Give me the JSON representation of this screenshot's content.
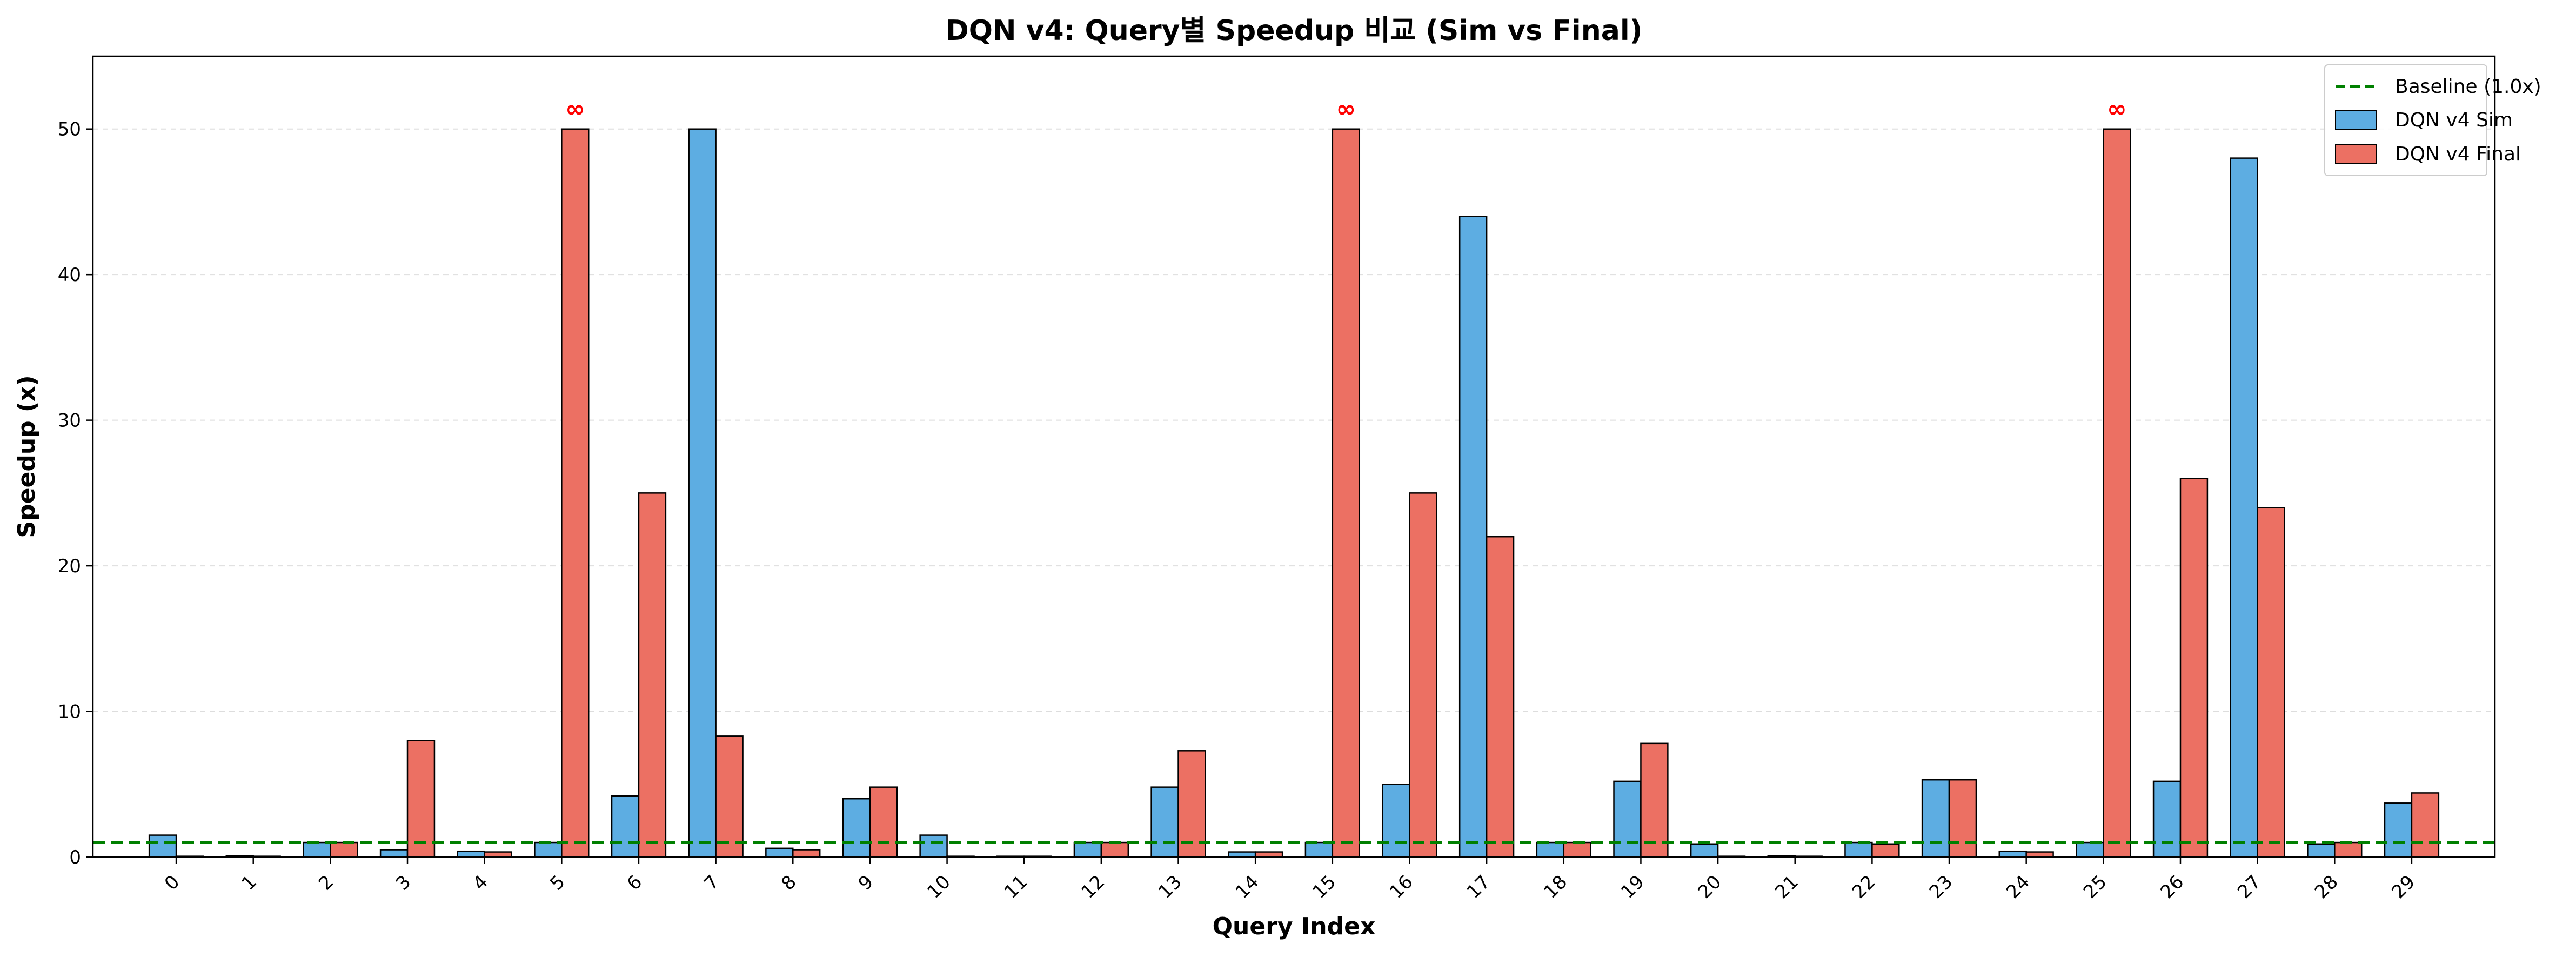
{
  "chart_data": {
    "type": "bar",
    "title": "DQN v4: Query별 Speedup 비교 (Sim vs Final)",
    "xlabel": "Query Index",
    "ylabel": "Speedup (x)",
    "ylim": [
      0,
      55
    ],
    "yticks": [
      0,
      10,
      20,
      30,
      40,
      50
    ],
    "grid": "y-dashed",
    "legend_position": "top-right",
    "categories": [
      "0",
      "1",
      "2",
      "3",
      "4",
      "5",
      "6",
      "7",
      "8",
      "9",
      "10",
      "11",
      "12",
      "13",
      "14",
      "15",
      "16",
      "17",
      "18",
      "19",
      "20",
      "21",
      "22",
      "23",
      "24",
      "25",
      "26",
      "27",
      "28",
      "29"
    ],
    "baseline": {
      "name": "Baseline (1.0x)",
      "value": 1.0,
      "color": "#008000"
    },
    "series": [
      {
        "name": "DQN v4 Sim",
        "color": "#5DADE2",
        "values": [
          1.5,
          0.1,
          1.0,
          0.5,
          0.4,
          1.0,
          4.2,
          50,
          0.6,
          4.0,
          1.5,
          0.05,
          1.0,
          4.8,
          0.35,
          1.0,
          5.0,
          44,
          1.0,
          5.2,
          0.9,
          0.1,
          1.0,
          5.3,
          0.4,
          1.0,
          5.2,
          48,
          0.9,
          3.7
        ]
      },
      {
        "name": "DQN v4 Final",
        "color": "#EC7063",
        "values": [
          0.05,
          0.05,
          1.0,
          8.0,
          0.35,
          50,
          25,
          8.3,
          0.5,
          4.8,
          0.05,
          0.05,
          1.0,
          7.3,
          0.35,
          50,
          25,
          22,
          1.0,
          7.8,
          0.05,
          0.05,
          0.9,
          5.3,
          0.35,
          50,
          26,
          24,
          1.0,
          4.4
        ]
      }
    ],
    "annotations": [
      {
        "category": "5",
        "series": "DQN v4 Final",
        "text": "∞",
        "color": "#FF0000"
      },
      {
        "category": "15",
        "series": "DQN v4 Final",
        "text": "∞",
        "color": "#FF0000"
      },
      {
        "category": "25",
        "series": "DQN v4 Final",
        "text": "∞",
        "color": "#FF0000"
      }
    ]
  }
}
